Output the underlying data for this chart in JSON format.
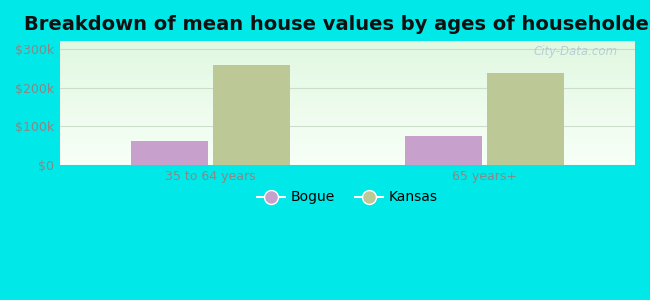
{
  "title": "Breakdown of mean house values by ages of householders",
  "categories": [
    "35 to 64 years",
    "65 years+"
  ],
  "series": [
    {
      "name": "Bogue",
      "values": [
        62000,
        75000
      ],
      "color": "#c8a0cc"
    },
    {
      "name": "Kansas",
      "values": [
        258000,
        238000
      ],
      "color": "#bcc896"
    }
  ],
  "ylim": [
    0,
    320000
  ],
  "yticks": [
    0,
    100000,
    200000,
    300000
  ],
  "ytick_labels": [
    "$0",
    "$100k",
    "$200k",
    "$300k"
  ],
  "background_color": "#00e8e8",
  "title_fontsize": 14,
  "bar_width": 0.28,
  "watermark": "City-Data.com",
  "tick_color": "#888888",
  "grid_color": "#ccddcc"
}
